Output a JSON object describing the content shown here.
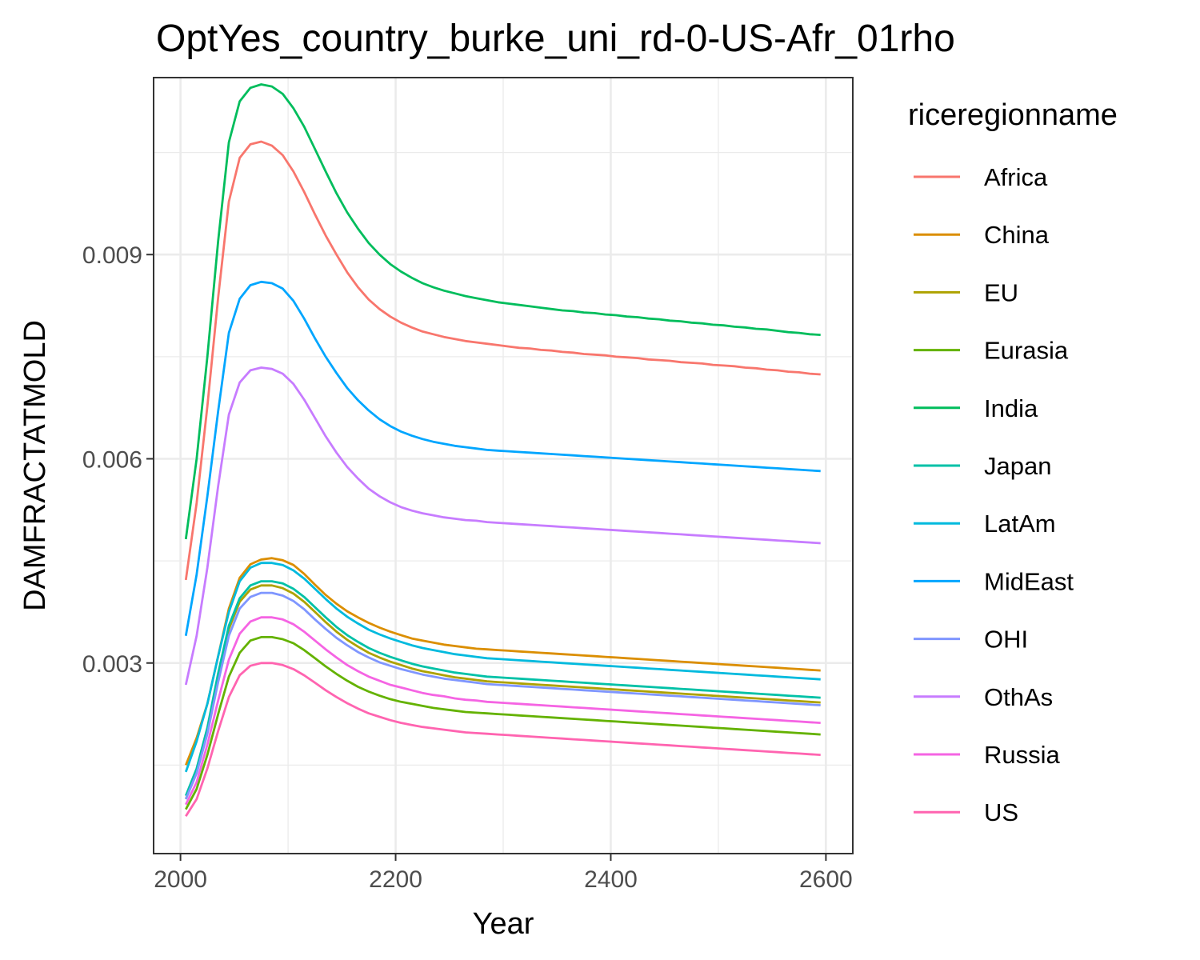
{
  "chart_data": {
    "type": "line",
    "title": "OptYes_country_burke_uni_rd-0-US-Afr_01rho",
    "xlabel": "Year",
    "ylabel": "DAMFRACTATMOLD",
    "xlim": [
      1975,
      2625
    ],
    "ylim": [
      0.0002,
      0.0116
    ],
    "x_ticks": [
      2000,
      2200,
      2400,
      2600
    ],
    "x_tick_labels": [
      "2000",
      "2200",
      "2400",
      "2600"
    ],
    "y_ticks": [
      0.003,
      0.006,
      0.009
    ],
    "y_tick_labels": [
      "0.003",
      "0.006",
      "0.009"
    ],
    "grid": true,
    "legend_title": "riceregionname",
    "legend_position": "right",
    "x": [
      2005,
      2015,
      2025,
      2035,
      2045,
      2055,
      2065,
      2075,
      2085,
      2095,
      2105,
      2115,
      2125,
      2135,
      2145,
      2155,
      2165,
      2175,
      2185,
      2195,
      2205,
      2215,
      2225,
      2235,
      2245,
      2255,
      2265,
      2275,
      2285,
      2295,
      2305,
      2315,
      2325,
      2335,
      2345,
      2355,
      2365,
      2375,
      2385,
      2395,
      2405,
      2415,
      2425,
      2435,
      2445,
      2455,
      2465,
      2475,
      2485,
      2495,
      2505,
      2515,
      2525,
      2535,
      2545,
      2555,
      2565,
      2575,
      2585,
      2595
    ],
    "series": [
      {
        "name": "Africa",
        "color": "#F8766D",
        "values": [
          0.00422,
          0.00535,
          0.00677,
          0.00837,
          0.00978,
          0.01042,
          0.01062,
          0.01066,
          0.0106,
          0.01046,
          0.01022,
          0.00992,
          0.00959,
          0.00928,
          0.009,
          0.00874,
          0.00852,
          0.00834,
          0.0082,
          0.00809,
          0.008,
          0.00793,
          0.00787,
          0.00783,
          0.00779,
          0.00776,
          0.00773,
          0.00771,
          0.00769,
          0.00767,
          0.00765,
          0.00763,
          0.00762,
          0.0076,
          0.00759,
          0.00757,
          0.00756,
          0.00754,
          0.00753,
          0.00752,
          0.0075,
          0.00749,
          0.00748,
          0.00746,
          0.00745,
          0.00744,
          0.00742,
          0.00741,
          0.0074,
          0.00738,
          0.00737,
          0.00736,
          0.00734,
          0.00733,
          0.00731,
          0.0073,
          0.00728,
          0.00727,
          0.00725,
          0.00724
        ]
      },
      {
        "name": "China",
        "color": "#DB8E00",
        "values": [
          0.0015,
          0.0019,
          0.0024,
          0.0031,
          0.0038,
          0.00425,
          0.00445,
          0.00452,
          0.00454,
          0.00451,
          0.00444,
          0.00431,
          0.00415,
          0.004,
          0.00387,
          0.00376,
          0.00367,
          0.00359,
          0.00352,
          0.00346,
          0.00341,
          0.00336,
          0.00333,
          0.0033,
          0.00327,
          0.00325,
          0.00323,
          0.00321,
          0.0032,
          0.00319,
          0.00318,
          0.00317,
          0.00316,
          0.00315,
          0.00314,
          0.00313,
          0.00312,
          0.00311,
          0.0031,
          0.00309,
          0.00308,
          0.00307,
          0.00306,
          0.00305,
          0.00304,
          0.00303,
          0.00302,
          0.00301,
          0.003,
          0.00299,
          0.00298,
          0.00297,
          0.00296,
          0.00295,
          0.00294,
          0.00293,
          0.00292,
          0.00291,
          0.0029,
          0.00289
        ]
      },
      {
        "name": "EU",
        "color": "#AEA200",
        "values": [
          0.001,
          0.0014,
          0.002,
          0.0028,
          0.0035,
          0.0039,
          0.00408,
          0.00414,
          0.00414,
          0.0041,
          0.00402,
          0.0039,
          0.00375,
          0.0036,
          0.00346,
          0.00334,
          0.00324,
          0.00315,
          0.00308,
          0.00302,
          0.00297,
          0.00292,
          0.00288,
          0.00285,
          0.00282,
          0.00279,
          0.00277,
          0.00275,
          0.00273,
          0.00272,
          0.00271,
          0.0027,
          0.00269,
          0.00268,
          0.00267,
          0.00266,
          0.00265,
          0.00264,
          0.00263,
          0.00262,
          0.00261,
          0.0026,
          0.00259,
          0.00258,
          0.00257,
          0.00256,
          0.00255,
          0.00254,
          0.00253,
          0.00252,
          0.00251,
          0.0025,
          0.00249,
          0.00248,
          0.00247,
          0.00246,
          0.00245,
          0.00244,
          0.00243,
          0.00242
        ]
      },
      {
        "name": "Eurasia",
        "color": "#64B200",
        "values": [
          0.00085,
          0.00115,
          0.00165,
          0.00225,
          0.0028,
          0.00315,
          0.00333,
          0.00338,
          0.00338,
          0.00335,
          0.00329,
          0.00319,
          0.00307,
          0.00295,
          0.00284,
          0.00274,
          0.00265,
          0.00258,
          0.00252,
          0.00247,
          0.00243,
          0.0024,
          0.00237,
          0.00234,
          0.00232,
          0.0023,
          0.00228,
          0.00227,
          0.00226,
          0.00225,
          0.00224,
          0.00223,
          0.00222,
          0.00221,
          0.0022,
          0.00219,
          0.00218,
          0.00217,
          0.00216,
          0.00215,
          0.00214,
          0.00213,
          0.00212,
          0.00211,
          0.0021,
          0.00209,
          0.00208,
          0.00207,
          0.00206,
          0.00205,
          0.00204,
          0.00203,
          0.00202,
          0.00201,
          0.002,
          0.00199,
          0.00198,
          0.00197,
          0.00196,
          0.00195
        ]
      },
      {
        "name": "India",
        "color": "#00BD5C",
        "values": [
          0.00482,
          0.006,
          0.0075,
          0.0092,
          0.01065,
          0.01125,
          0.01145,
          0.0115,
          0.01147,
          0.01136,
          0.01115,
          0.01088,
          0.01055,
          0.01022,
          0.0099,
          0.00962,
          0.00938,
          0.00917,
          0.009,
          0.00886,
          0.00875,
          0.00866,
          0.00858,
          0.00852,
          0.00847,
          0.00843,
          0.00839,
          0.00836,
          0.00833,
          0.0083,
          0.00828,
          0.00826,
          0.00824,
          0.00822,
          0.0082,
          0.00818,
          0.00817,
          0.00815,
          0.00814,
          0.00812,
          0.00811,
          0.00809,
          0.00808,
          0.00806,
          0.00805,
          0.00803,
          0.00802,
          0.008,
          0.00799,
          0.00797,
          0.00796,
          0.00794,
          0.00793,
          0.00791,
          0.0079,
          0.00788,
          0.00786,
          0.00785,
          0.00783,
          0.00782
        ]
      },
      {
        "name": "Japan",
        "color": "#00C1A7",
        "values": [
          0.00105,
          0.00145,
          0.00205,
          0.00285,
          0.00355,
          0.00395,
          0.00414,
          0.0042,
          0.0042,
          0.00417,
          0.00409,
          0.00397,
          0.00382,
          0.00367,
          0.00353,
          0.00341,
          0.00331,
          0.00322,
          0.00315,
          0.00309,
          0.00304,
          0.00299,
          0.00295,
          0.00292,
          0.00289,
          0.00286,
          0.00284,
          0.00282,
          0.0028,
          0.00279,
          0.00278,
          0.00277,
          0.00276,
          0.00275,
          0.00274,
          0.00273,
          0.00272,
          0.00271,
          0.0027,
          0.00269,
          0.00268,
          0.00267,
          0.00266,
          0.00265,
          0.00264,
          0.00263,
          0.00262,
          0.00261,
          0.0026,
          0.00259,
          0.00258,
          0.00257,
          0.00256,
          0.00255,
          0.00254,
          0.00253,
          0.00252,
          0.00251,
          0.0025,
          0.00249
        ]
      },
      {
        "name": "LatAm",
        "color": "#00BADE",
        "values": [
          0.0014,
          0.00185,
          0.0024,
          0.0031,
          0.00375,
          0.0042,
          0.0044,
          0.00447,
          0.00447,
          0.00444,
          0.00436,
          0.00424,
          0.00409,
          0.00394,
          0.0038,
          0.00368,
          0.00358,
          0.00349,
          0.00342,
          0.00336,
          0.00331,
          0.00326,
          0.00322,
          0.00319,
          0.00316,
          0.00313,
          0.00311,
          0.00309,
          0.00307,
          0.00306,
          0.00305,
          0.00304,
          0.00303,
          0.00302,
          0.00301,
          0.003,
          0.00299,
          0.00298,
          0.00297,
          0.00296,
          0.00295,
          0.00294,
          0.00293,
          0.00292,
          0.00291,
          0.0029,
          0.00289,
          0.00288,
          0.00287,
          0.00286,
          0.00285,
          0.00284,
          0.00283,
          0.00282,
          0.00281,
          0.0028,
          0.00279,
          0.00278,
          0.00277,
          0.00276
        ]
      },
      {
        "name": "MidEast",
        "color": "#00A6FF",
        "values": [
          0.0034,
          0.0043,
          0.00545,
          0.0067,
          0.00785,
          0.00835,
          0.00855,
          0.0086,
          0.00858,
          0.0085,
          0.00832,
          0.00806,
          0.00777,
          0.0075,
          0.00726,
          0.00704,
          0.00686,
          0.00671,
          0.00658,
          0.00648,
          0.0064,
          0.00634,
          0.00629,
          0.00625,
          0.00622,
          0.00619,
          0.00617,
          0.00615,
          0.00613,
          0.00612,
          0.00611,
          0.0061,
          0.00609,
          0.00608,
          0.00607,
          0.00606,
          0.00605,
          0.00604,
          0.00603,
          0.00602,
          0.00601,
          0.006,
          0.00599,
          0.00598,
          0.00597,
          0.00596,
          0.00595,
          0.00594,
          0.00593,
          0.00592,
          0.00591,
          0.0059,
          0.00589,
          0.00588,
          0.00587,
          0.00586,
          0.00585,
          0.00584,
          0.00583,
          0.00582
        ]
      },
      {
        "name": "OHI",
        "color": "#7F96FF",
        "values": [
          0.001,
          0.00138,
          0.00196,
          0.00272,
          0.0034,
          0.0038,
          0.00397,
          0.00403,
          0.00403,
          0.00399,
          0.00391,
          0.00379,
          0.00364,
          0.0035,
          0.00337,
          0.00326,
          0.00316,
          0.00308,
          0.00301,
          0.00296,
          0.00291,
          0.00287,
          0.00283,
          0.0028,
          0.00277,
          0.00275,
          0.00273,
          0.00271,
          0.00269,
          0.00268,
          0.00267,
          0.00266,
          0.00265,
          0.00264,
          0.00263,
          0.00262,
          0.00261,
          0.0026,
          0.00259,
          0.00258,
          0.00257,
          0.00256,
          0.00255,
          0.00254,
          0.00253,
          0.00252,
          0.00251,
          0.0025,
          0.00249,
          0.00248,
          0.00247,
          0.00246,
          0.00245,
          0.00244,
          0.00243,
          0.00242,
          0.00241,
          0.0024,
          0.00239,
          0.00238
        ]
      },
      {
        "name": "OthAs",
        "color": "#C77CFF",
        "values": [
          0.00268,
          0.0034,
          0.0044,
          0.0056,
          0.00665,
          0.00712,
          0.0073,
          0.00734,
          0.00732,
          0.00725,
          0.0071,
          0.00687,
          0.0066,
          0.00633,
          0.00609,
          0.00588,
          0.00571,
          0.00556,
          0.00545,
          0.00536,
          0.00529,
          0.00524,
          0.0052,
          0.00517,
          0.00514,
          0.00512,
          0.0051,
          0.00509,
          0.00507,
          0.00506,
          0.00505,
          0.00504,
          0.00503,
          0.00502,
          0.00501,
          0.005,
          0.00499,
          0.00498,
          0.00497,
          0.00496,
          0.00495,
          0.00494,
          0.00493,
          0.00492,
          0.00491,
          0.0049,
          0.00489,
          0.00488,
          0.00487,
          0.00486,
          0.00485,
          0.00484,
          0.00483,
          0.00482,
          0.00481,
          0.0048,
          0.00479,
          0.00478,
          0.00477,
          0.00476
        ]
      },
      {
        "name": "Russia",
        "color": "#F564E3",
        "values": [
          0.00092,
          0.00125,
          0.0018,
          0.00245,
          0.00305,
          0.00343,
          0.00361,
          0.00367,
          0.00367,
          0.00364,
          0.00357,
          0.00346,
          0.00333,
          0.0032,
          0.00308,
          0.00297,
          0.00288,
          0.0028,
          0.00274,
          0.00268,
          0.00264,
          0.0026,
          0.00256,
          0.00253,
          0.00251,
          0.00248,
          0.00246,
          0.00245,
          0.00243,
          0.00242,
          0.00241,
          0.0024,
          0.00239,
          0.00238,
          0.00237,
          0.00236,
          0.00235,
          0.00234,
          0.00233,
          0.00232,
          0.00231,
          0.0023,
          0.00229,
          0.00228,
          0.00227,
          0.00226,
          0.00225,
          0.00224,
          0.00223,
          0.00222,
          0.00221,
          0.0022,
          0.00219,
          0.00218,
          0.00217,
          0.00216,
          0.00215,
          0.00214,
          0.00213,
          0.00212
        ]
      },
      {
        "name": "US",
        "color": "#FF64B0",
        "values": [
          0.00075,
          0.001,
          0.00145,
          0.002,
          0.0025,
          0.00282,
          0.00296,
          0.003,
          0.003,
          0.00297,
          0.00291,
          0.00282,
          0.00271,
          0.0026,
          0.0025,
          0.00241,
          0.00233,
          0.00226,
          0.00221,
          0.00216,
          0.00212,
          0.00209,
          0.00206,
          0.00204,
          0.00202,
          0.002,
          0.00198,
          0.00197,
          0.00196,
          0.00195,
          0.00194,
          0.00193,
          0.00192,
          0.00191,
          0.0019,
          0.00189,
          0.00188,
          0.00187,
          0.00186,
          0.00185,
          0.00184,
          0.00183,
          0.00182,
          0.00181,
          0.0018,
          0.00179,
          0.00178,
          0.00177,
          0.00176,
          0.00175,
          0.00174,
          0.00173,
          0.00172,
          0.00171,
          0.0017,
          0.00169,
          0.00168,
          0.00167,
          0.00166,
          0.00165
        ]
      }
    ]
  }
}
